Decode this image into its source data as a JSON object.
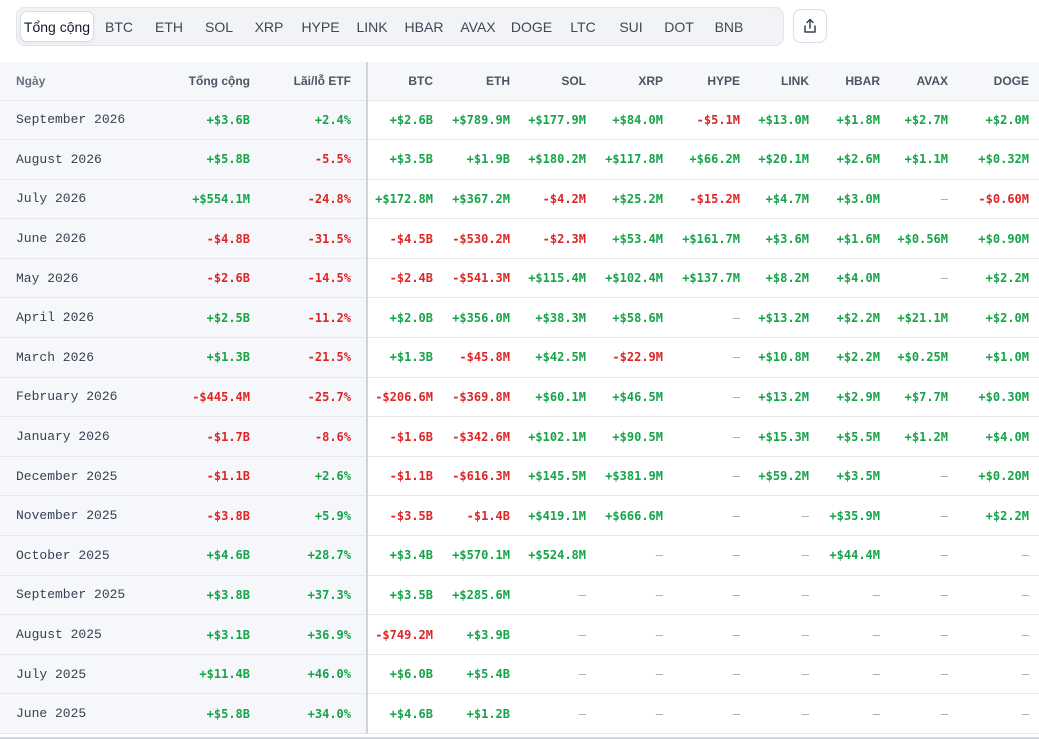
{
  "tabs": [
    {
      "label": "Tổng cộng",
      "active": true
    },
    {
      "label": "BTC"
    },
    {
      "label": "ETH"
    },
    {
      "label": "SOL"
    },
    {
      "label": "XRP"
    },
    {
      "label": "HYPE"
    },
    {
      "label": "LINK"
    },
    {
      "label": "HBAR"
    },
    {
      "label": "AVAX"
    },
    {
      "label": "DOGE"
    },
    {
      "label": "LTC"
    },
    {
      "label": "SUI"
    },
    {
      "label": "DOT"
    },
    {
      "label": "BNB"
    }
  ],
  "share_icon": "share-icon",
  "table": {
    "columns": [
      "Ngày",
      "Tổng cộng",
      "Lãi/lỗ ETF",
      "BTC",
      "ETH",
      "SOL",
      "XRP",
      "HYPE",
      "LINK",
      "HBAR",
      "AVAX",
      "DOGE"
    ],
    "rows": [
      [
        "September 2026",
        "+$3.6B",
        "+2.4%",
        "+$2.6B",
        "+$789.9M",
        "+$177.9M",
        "+$84.0M",
        "-$5.1M",
        "+$13.0M",
        "+$1.8M",
        "+$2.7M",
        "+$2.0M"
      ],
      [
        "August 2026",
        "+$5.8B",
        "-5.5%",
        "+$3.5B",
        "+$1.9B",
        "+$180.2M",
        "+$117.8M",
        "+$66.2M",
        "+$20.1M",
        "+$2.6M",
        "+$1.1M",
        "+$0.32M"
      ],
      [
        "July 2026",
        "+$554.1M",
        "-24.8%",
        "+$172.8M",
        "+$367.2M",
        "-$4.2M",
        "+$25.2M",
        "-$15.2M",
        "+$4.7M",
        "+$3.0M",
        "—",
        "-$0.60M"
      ],
      [
        "June 2026",
        "-$4.8B",
        "-31.5%",
        "-$4.5B",
        "-$530.2M",
        "-$2.3M",
        "+$53.4M",
        "+$161.7M",
        "+$3.6M",
        "+$1.6M",
        "+$0.56M",
        "+$0.90M"
      ],
      [
        "May 2026",
        "-$2.6B",
        "-14.5%",
        "-$2.4B",
        "-$541.3M",
        "+$115.4M",
        "+$102.4M",
        "+$137.7M",
        "+$8.2M",
        "+$4.0M",
        "—",
        "+$2.2M"
      ],
      [
        "April 2026",
        "+$2.5B",
        "-11.2%",
        "+$2.0B",
        "+$356.0M",
        "+$38.3M",
        "+$58.6M",
        "—",
        "+$13.2M",
        "+$2.2M",
        "+$21.1M",
        "+$2.0M"
      ],
      [
        "March 2026",
        "+$1.3B",
        "-21.5%",
        "+$1.3B",
        "-$45.8M",
        "+$42.5M",
        "-$22.9M",
        "—",
        "+$10.8M",
        "+$2.2M",
        "+$0.25M",
        "+$1.0M"
      ],
      [
        "February 2026",
        "-$445.4M",
        "-25.7%",
        "-$206.6M",
        "-$369.8M",
        "+$60.1M",
        "+$46.5M",
        "—",
        "+$13.2M",
        "+$2.9M",
        "+$7.7M",
        "+$0.30M"
      ],
      [
        "January 2026",
        "-$1.7B",
        "-8.6%",
        "-$1.6B",
        "-$342.6M",
        "+$102.1M",
        "+$90.5M",
        "—",
        "+$15.3M",
        "+$5.5M",
        "+$1.2M",
        "+$4.0M"
      ],
      [
        "December 2025",
        "-$1.1B",
        "+2.6%",
        "-$1.1B",
        "-$616.3M",
        "+$145.5M",
        "+$381.9M",
        "—",
        "+$59.2M",
        "+$3.5M",
        "—",
        "+$0.20M"
      ],
      [
        "November 2025",
        "-$3.8B",
        "+5.9%",
        "-$3.5B",
        "-$1.4B",
        "+$419.1M",
        "+$666.6M",
        "—",
        "—",
        "+$35.9M",
        "—",
        "+$2.2M"
      ],
      [
        "October 2025",
        "+$4.6B",
        "+28.7%",
        "+$3.4B",
        "+$570.1M",
        "+$524.8M",
        "—",
        "—",
        "—",
        "+$44.4M",
        "—",
        "—"
      ],
      [
        "September 2025",
        "+$3.8B",
        "+37.3%",
        "+$3.5B",
        "+$285.6M",
        "—",
        "—",
        "—",
        "—",
        "—",
        "—",
        "—"
      ],
      [
        "August 2025",
        "+$3.1B",
        "+36.9%",
        "-$749.2M",
        "+$3.9B",
        "—",
        "—",
        "—",
        "—",
        "—",
        "—",
        "—"
      ],
      [
        "July 2025",
        "+$11.4B",
        "+46.0%",
        "+$6.0B",
        "+$5.4B",
        "—",
        "—",
        "—",
        "—",
        "—",
        "—",
        "—"
      ],
      [
        "June 2025",
        "+$5.8B",
        "+34.0%",
        "+$4.6B",
        "+$1.2B",
        "—",
        "—",
        "—",
        "—",
        "—",
        "—",
        "—"
      ]
    ]
  },
  "colors": {
    "positive": "#16a34a",
    "negative": "#dc2626",
    "empty": "#a0a7b2"
  }
}
